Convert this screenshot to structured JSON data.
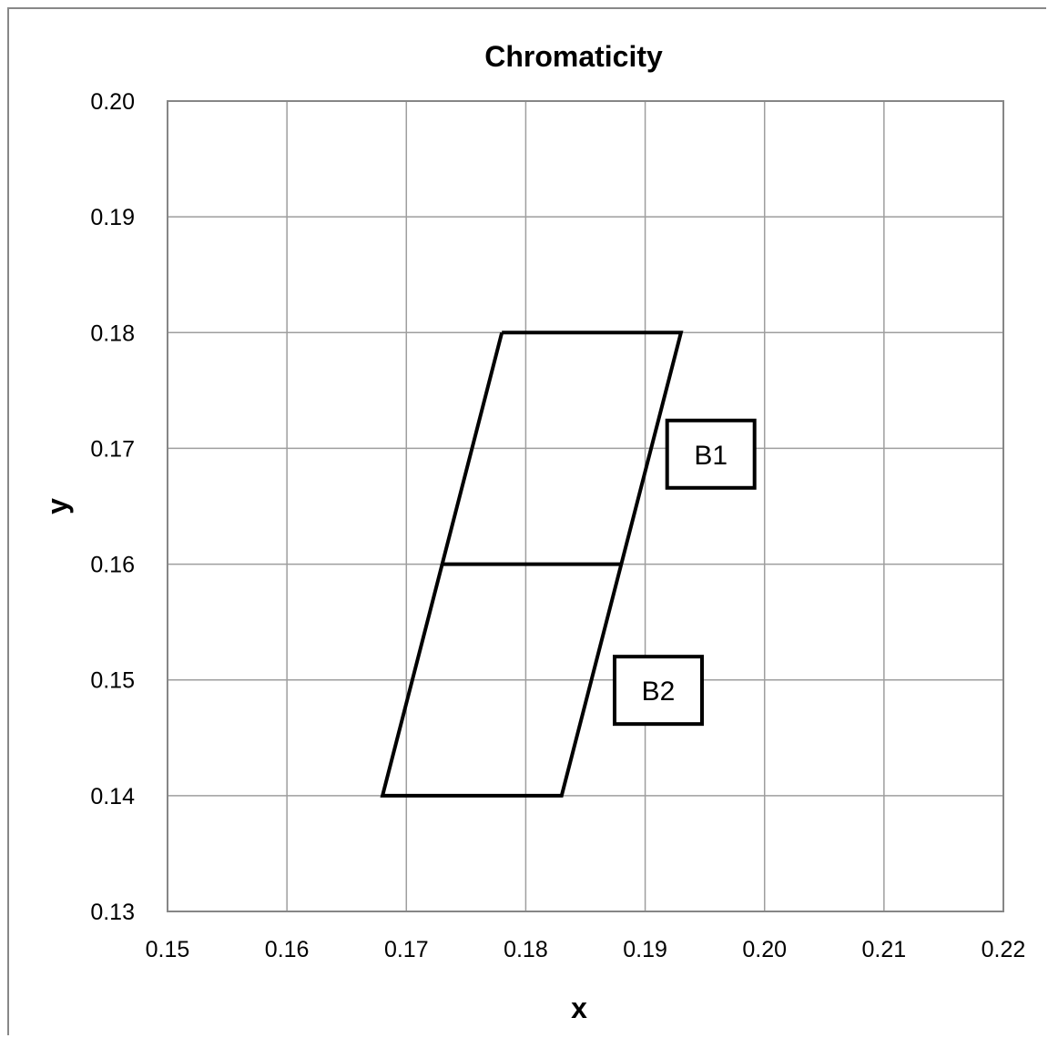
{
  "chart_data": {
    "type": "line",
    "title": "Chromaticity",
    "xlabel": "x",
    "ylabel": "y",
    "xlim": [
      0.15,
      0.22
    ],
    "ylim": [
      0.13,
      0.2
    ],
    "grid": true,
    "x_ticks": [
      "0.15",
      "0.16",
      "0.17",
      "0.18",
      "0.19",
      "0.20",
      "0.21",
      "0.22"
    ],
    "y_ticks": [
      "0.13",
      "0.14",
      "0.15",
      "0.16",
      "0.17",
      "0.18",
      "0.19",
      "0.20"
    ],
    "series": [
      {
        "points": [
          {
            "x": 0.178,
            "y": 0.18
          },
          {
            "x": 0.193,
            "y": 0.18
          },
          {
            "x": 0.183,
            "y": 0.14
          },
          {
            "x": 0.168,
            "y": 0.14
          },
          {
            "x": 0.178,
            "y": 0.18
          }
        ]
      },
      {
        "points": [
          {
            "x": 0.173,
            "y": 0.16
          },
          {
            "x": 0.188,
            "y": 0.16
          }
        ]
      }
    ],
    "annotations": [
      {
        "text": "B1",
        "x": 0.1955,
        "y": 0.1695
      },
      {
        "text": "B2",
        "x": 0.1911,
        "y": 0.1491
      }
    ],
    "colors": {
      "line": "#000000",
      "grid": "#9e9e9e",
      "axis": "#868686"
    }
  }
}
